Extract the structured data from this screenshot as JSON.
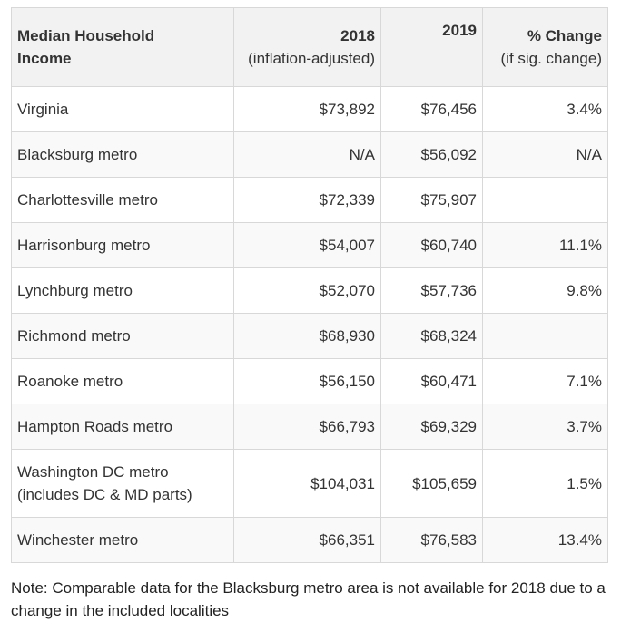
{
  "table": {
    "headers": [
      {
        "title": "Median Household Income",
        "sub": ""
      },
      {
        "title": "2018",
        "sub": "(inflation-adjusted)"
      },
      {
        "title": "2019",
        "sub": ""
      },
      {
        "title": "% Change",
        "sub": "(if sig. change)"
      }
    ],
    "rows": [
      {
        "region": "Virginia",
        "y2018": "$73,892",
        "y2019": "$76,456",
        "change": "3.4%"
      },
      {
        "region": "Blacksburg metro",
        "y2018": "N/A",
        "y2019": "$56,092",
        "change": "N/A"
      },
      {
        "region": "Charlottesville metro",
        "y2018": "$72,339",
        "y2019": "$75,907",
        "change": ""
      },
      {
        "region": "Harrisonburg metro",
        "y2018": "$54,007",
        "y2019": "$60,740",
        "change": "11.1%"
      },
      {
        "region": "Lynchburg metro",
        "y2018": "$52,070",
        "y2019": "$57,736",
        "change": "9.8%"
      },
      {
        "region": "Richmond metro",
        "y2018": "$68,930",
        "y2019": "$68,324",
        "change": ""
      },
      {
        "region": "Roanoke metro",
        "y2018": "$56,150",
        "y2019": "$60,471",
        "change": "7.1%"
      },
      {
        "region": "Hampton Roads metro",
        "y2018": "$66,793",
        "y2019": "$69,329",
        "change": "3.7%"
      },
      {
        "region": "Washington DC metro",
        "region_sub": "(includes DC & MD parts)",
        "y2018": "$104,031",
        "y2019": "$105,659",
        "change": "1.5%"
      },
      {
        "region": "Winchester metro",
        "y2018": "$66,351",
        "y2019": "$76,583",
        "change": "13.4%"
      }
    ]
  },
  "note": "Note: Comparable data for the Blacksburg metro area is not available for 2018 due to a change in the included localities"
}
